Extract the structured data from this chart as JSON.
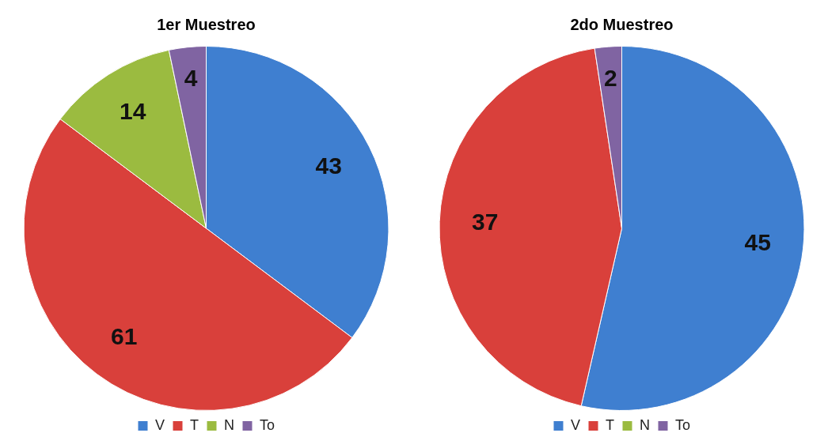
{
  "chart_data": [
    {
      "type": "pie",
      "title": "1er Muestreo",
      "categories": [
        "V",
        "T",
        "N",
        "To"
      ],
      "values": [
        43,
        61,
        14,
        4
      ],
      "colors": [
        "#3f7fd0",
        "#d9403b",
        "#9bbb40",
        "#8064a2"
      ],
      "data_labels": true,
      "legend": "bottom"
    },
    {
      "type": "pie",
      "title": "2do Muestreo",
      "categories": [
        "V",
        "T",
        "N",
        "To"
      ],
      "values": [
        45,
        37,
        0,
        2
      ],
      "colors": [
        "#3f7fd0",
        "#d9403b",
        "#9bbb40",
        "#8064a2"
      ],
      "value_labels": [
        "45",
        "37",
        null,
        "2"
      ],
      "legend": "bottom"
    }
  ]
}
